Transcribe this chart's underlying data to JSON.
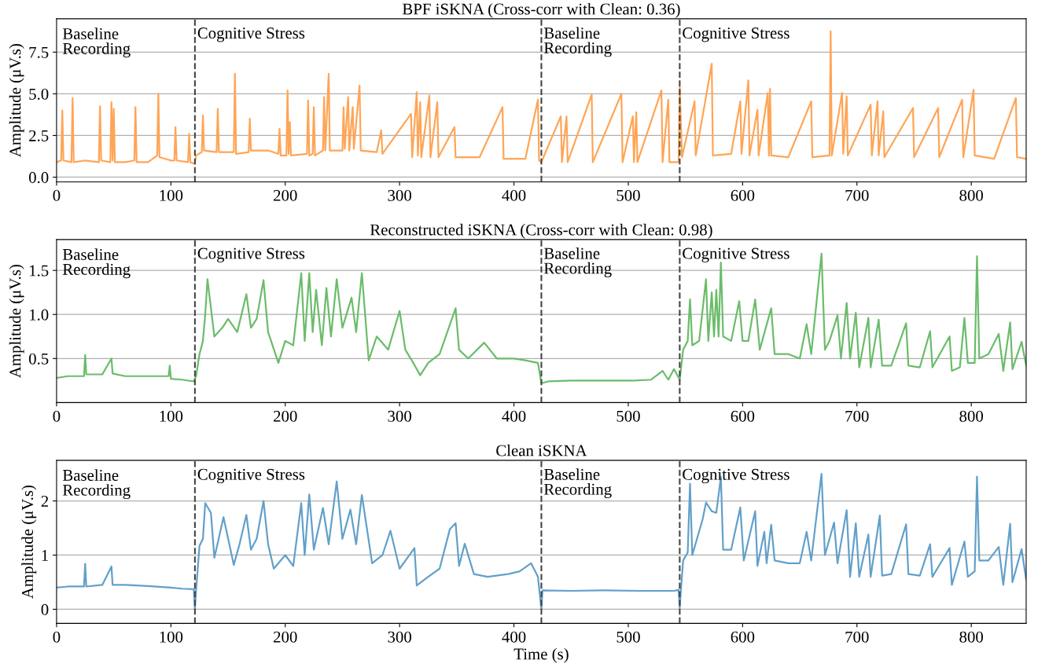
{
  "chart_data": [
    {
      "type": "line",
      "title": "BPF iSKNA (Cross-corr with Clean: 0.36)",
      "ylabel": "Amplitude (μV.s)",
      "xlim": [
        0,
        848
      ],
      "xticks": [
        0,
        100,
        200,
        300,
        400,
        500,
        600,
        700,
        800
      ],
      "ylim": [
        -0.28,
        9.5
      ],
      "yticks": [
        {
          "value": 0,
          "label": "0.0"
        },
        {
          "value": 2.5,
          "label": "2.5"
        },
        {
          "value": 5,
          "label": "5.0"
        },
        {
          "value": 7.5,
          "label": "7.5"
        }
      ],
      "grid": "y",
      "line_style": "solid",
      "marker": "none",
      "ref_lines": [
        {
          "axis": "x",
          "value": 121,
          "color": "#444444",
          "line_style": "dashed"
        },
        {
          "axis": "x",
          "value": 424,
          "color": "#444444",
          "line_style": "dashed"
        },
        {
          "axis": "x",
          "value": 545,
          "color": "#444444",
          "line_style": "dashed"
        }
      ],
      "annotations": [
        "Baseline\nRecording",
        {
          "text": "Cognitive Stress",
          "x": 123,
          "y": 9.0
        },
        {
          "text": "Baseline\nRecording",
          "x": 426,
          "y": 9.0
        },
        {
          "text": "Cognitive Stress",
          "x": 547,
          "y": 9.0
        }
      ],
      "series": [
        {
          "color": "#ffa556",
          "x": [
            0,
            4,
            5,
            6,
            13,
            14,
            15,
            25,
            37,
            38,
            39,
            47,
            48,
            49,
            50,
            51,
            60,
            68,
            69,
            70,
            80,
            88,
            89,
            90,
            100,
            103,
            104,
            105,
            115,
            116,
            117,
            121,
            122,
            127,
            128,
            129,
            140,
            141,
            142,
            155,
            156,
            157,
            168,
            169,
            170,
            185,
            194,
            195,
            196,
            201,
            202,
            203,
            204,
            205,
            219,
            220,
            221,
            224,
            225,
            226,
            233,
            234,
            235,
            238,
            239,
            250,
            251,
            252,
            255,
            256,
            259,
            260,
            265,
            266,
            280,
            284,
            285,
            310,
            311,
            315,
            316,
            318,
            319,
            326,
            327,
            333,
            334,
            348,
            349,
            370,
            390,
            391,
            410,
            421,
            422,
            424,
            441,
            442,
            446,
            447,
            468,
            469,
            494,
            495,
            504,
            505,
            507,
            508,
            529,
            530,
            535,
            536,
            544,
            545,
            547,
            558,
            559,
            573,
            574,
            590,
            598,
            599,
            605,
            606,
            613,
            614,
            622,
            623,
            624,
            625,
            640,
            660,
            661,
            676,
            677,
            678,
            687,
            688,
            691,
            692,
            712,
            713,
            718,
            719,
            723,
            724,
            749,
            750,
            771,
            772,
            792,
            793,
            802,
            803,
            820,
            839,
            840,
            848
          ],
          "values": [
            0.9,
            1.0,
            4.0,
            1.0,
            0.9,
            4.75,
            0.9,
            1.0,
            0.9,
            4.25,
            1.0,
            0.9,
            4.5,
            1.0,
            4.1,
            0.9,
            0.9,
            1.0,
            4.2,
            0.9,
            0.9,
            1.3,
            5.0,
            1.2,
            1.0,
            1.0,
            3.0,
            1.0,
            0.9,
            2.6,
            0.9,
            0.8,
            1.3,
            1.5,
            3.7,
            1.6,
            1.5,
            4.1,
            1.5,
            1.5,
            6.2,
            1.4,
            1.5,
            3.5,
            1.6,
            1.6,
            1.4,
            2.9,
            1.3,
            1.3,
            5.2,
            1.4,
            3.3,
            1.3,
            1.4,
            4.6,
            1.3,
            1.4,
            4.2,
            1.3,
            1.6,
            4.8,
            1.6,
            6.2,
            1.6,
            1.6,
            4.2,
            1.7,
            4.8,
            1.6,
            4.2,
            1.7,
            5.5,
            1.6,
            1.5,
            2.8,
            1.4,
            3.8,
            1.2,
            5.1,
            1.3,
            4.5,
            1.2,
            4.9,
            1.2,
            4.5,
            1.2,
            3.0,
            1.2,
            1.2,
            4.2,
            1.1,
            1.1,
            4.65,
            1.0,
            0.9,
            3.65,
            0.9,
            3.65,
            0.9,
            4.95,
            0.9,
            5.0,
            0.9,
            3.65,
            0.9,
            3.9,
            0.9,
            5.2,
            0.9,
            4.65,
            0.9,
            0.9,
            5.4,
            1.2,
            4.55,
            1.3,
            6.8,
            1.3,
            1.4,
            4.55,
            1.4,
            5.8,
            1.3,
            4.05,
            1.3,
            5.05,
            1.3,
            5.3,
            1.3,
            1.2,
            4.55,
            1.2,
            1.3,
            8.75,
            1.3,
            5.05,
            1.4,
            4.85,
            1.3,
            4.35,
            1.3,
            4.55,
            1.3,
            3.95,
            1.2,
            4.15,
            1.2,
            4.15,
            1.2,
            4.65,
            1.2,
            5.25,
            1.3,
            1.1,
            4.75,
            1.2,
            1.1
          ]
        }
      ]
    },
    {
      "type": "line",
      "title": "Reconstructed iSKNA (Cross-corr with Clean: 0.98)",
      "ylabel": "Amplitude (μV.s)",
      "xlim": [
        0,
        848
      ],
      "xticks": [
        0,
        100,
        200,
        300,
        400,
        500,
        600,
        700,
        800
      ],
      "ylim": [
        0.0,
        1.85
      ],
      "yticks": [
        {
          "value": 0.5,
          "label": "0.5"
        },
        {
          "value": 1.0,
          "label": "1.0"
        },
        {
          "value": 1.5,
          "label": "1.5"
        }
      ],
      "grid": "y",
      "line_style": "solid",
      "marker": "none",
      "ref_lines": [
        {
          "axis": "x",
          "value": 121,
          "color": "#444444",
          "line_style": "dashed"
        },
        {
          "axis": "x",
          "value": 424,
          "color": "#444444",
          "line_style": "dashed"
        },
        {
          "axis": "x",
          "value": 545,
          "color": "#444444",
          "line_style": "dashed"
        }
      ],
      "annotations": [
        "Baseline\nRecording",
        {
          "text": "Cognitive Stress",
          "x": 123,
          "y": 1.76
        },
        {
          "text": "Baseline\nRecording",
          "x": 426,
          "y": 1.76
        },
        {
          "text": "Cognitive Stress",
          "x": 547,
          "y": 1.76
        }
      ],
      "series": [
        {
          "color": "#6bbc6b",
          "x": [
            0,
            10,
            24,
            25,
            26,
            40,
            48,
            49,
            60,
            80,
            98,
            99,
            100,
            110,
            120,
            122,
            125,
            128,
            130,
            132,
            138,
            145,
            150,
            158,
            166,
            170,
            175,
            181,
            185,
            194,
            200,
            207,
            214,
            217,
            221,
            224,
            227,
            232,
            236,
            240,
            245,
            250,
            258,
            262,
            267,
            273,
            280,
            290,
            300,
            305,
            312,
            318,
            325,
            335,
            349,
            352,
            360,
            374,
            385,
            400,
            410,
            421,
            424,
            430,
            450,
            470,
            490,
            505,
            520,
            530,
            535,
            540,
            545,
            548,
            552,
            554,
            556,
            562,
            568,
            570,
            573,
            575,
            577,
            579,
            581,
            583,
            590,
            597,
            600,
            605,
            611,
            615,
            625,
            628,
            640,
            650,
            656,
            660,
            669,
            672,
            676,
            683,
            686,
            691,
            694,
            699,
            702,
            710,
            712,
            719,
            722,
            730,
            743,
            745,
            755,
            764,
            766,
            781,
            783,
            790,
            794,
            797,
            803,
            805,
            807,
            815,
            824,
            828,
            834,
            836,
            844,
            848
          ],
          "values": [
            0.28,
            0.3,
            0.3,
            0.54,
            0.32,
            0.32,
            0.5,
            0.33,
            0.3,
            0.3,
            0.3,
            0.42,
            0.27,
            0.26,
            0.24,
            0.3,
            0.55,
            0.7,
            1.0,
            1.4,
            0.75,
            0.85,
            0.95,
            0.8,
            1.23,
            0.85,
            0.95,
            1.39,
            0.8,
            0.45,
            0.7,
            0.65,
            1.47,
            0.7,
            1.47,
            0.8,
            1.28,
            0.65,
            1.3,
            0.75,
            1.4,
            0.85,
            1.19,
            0.8,
            1.47,
            0.48,
            0.75,
            0.6,
            1.04,
            0.6,
            0.45,
            0.31,
            0.45,
            0.55,
            1.07,
            0.6,
            0.5,
            0.68,
            0.5,
            0.5,
            0.48,
            0.45,
            0.22,
            0.24,
            0.25,
            0.25,
            0.25,
            0.25,
            0.26,
            0.36,
            0.26,
            0.38,
            0.26,
            0.6,
            0.7,
            1.17,
            0.65,
            0.7,
            1.4,
            0.7,
            1.25,
            0.75,
            1.28,
            0.75,
            1.59,
            0.75,
            0.7,
            1.15,
            0.7,
            0.7,
            1.17,
            0.6,
            1.07,
            0.55,
            0.55,
            0.5,
            0.89,
            0.55,
            1.69,
            0.6,
            0.7,
            0.99,
            0.5,
            1.13,
            0.5,
            1.02,
            0.4,
            0.96,
            0.4,
            0.94,
            0.42,
            0.42,
            0.9,
            0.42,
            0.4,
            0.81,
            0.4,
            0.75,
            0.36,
            0.4,
            0.96,
            0.45,
            0.45,
            1.66,
            0.5,
            0.55,
            0.78,
            0.36,
            0.91,
            0.38,
            0.69,
            0.42
          ]
        }
      ]
    },
    {
      "type": "line",
      "title": "Clean iSKNA",
      "xlabel": "Time (s)",
      "ylabel": "Amplitude (μV.s)",
      "xlim": [
        0,
        848
      ],
      "xticks": [
        0,
        100,
        200,
        300,
        400,
        500,
        600,
        700,
        800
      ],
      "ylim": [
        -0.26,
        2.75
      ],
      "yticks": [
        0,
        1,
        2
      ],
      "grid": "y",
      "line_style": "solid",
      "marker": "none",
      "ref_lines": [
        {
          "axis": "x",
          "value": 121,
          "color": "#444444",
          "line_style": "dashed"
        },
        {
          "axis": "x",
          "value": 424,
          "color": "#444444",
          "line_style": "dashed"
        },
        {
          "axis": "x",
          "value": 545,
          "color": "#444444",
          "line_style": "dashed"
        }
      ],
      "annotations": [
        "Baseline\nRecording",
        {
          "text": "Cognitive Stress",
          "x": 123,
          "y": 2.6
        },
        {
          "text": "Baseline\nRecording",
          "x": 426,
          "y": 2.6
        },
        {
          "text": "Cognitive Stress",
          "x": 547,
          "y": 2.6
        }
      ],
      "series": [
        {
          "color": "#62a0ca",
          "x": [
            0,
            10,
            24,
            25,
            26,
            40,
            48,
            49,
            60,
            80,
            100,
            110,
            120,
            121,
            122,
            125,
            128,
            130,
            135,
            138,
            146,
            155,
            160,
            166,
            170,
            175,
            181,
            185,
            190,
            200,
            207,
            214,
            217,
            221,
            225,
            233,
            238,
            245,
            250,
            257,
            262,
            267,
            276,
            285,
            292,
            300,
            313,
            315,
            325,
            335,
            344,
            349,
            352,
            357,
            365,
            377,
            395,
            405,
            415,
            421,
            424,
            425,
            450,
            480,
            510,
            540,
            544,
            545,
            546,
            548,
            552,
            554,
            556,
            565,
            568,
            573,
            577,
            581,
            583,
            590,
            598,
            601,
            611,
            613,
            619,
            621,
            625,
            628,
            640,
            650,
            656,
            660,
            669,
            672,
            680,
            683,
            691,
            694,
            699,
            702,
            710,
            712,
            720,
            722,
            730,
            743,
            745,
            755,
            764,
            766,
            781,
            783,
            794,
            797,
            803,
            805,
            807,
            815,
            824,
            828,
            834,
            836,
            844,
            848
          ],
          "values": [
            0.4,
            0.42,
            0.42,
            0.84,
            0.42,
            0.45,
            0.79,
            0.45,
            0.45,
            0.43,
            0.4,
            0.38,
            0.37,
            0.0,
            0.35,
            1.17,
            1.3,
            1.96,
            1.78,
            0.95,
            1.7,
            0.82,
            1.2,
            1.74,
            1.1,
            1.3,
            2.0,
            1.2,
            0.75,
            1.0,
            0.8,
            1.96,
            1.0,
            2.12,
            1.1,
            1.87,
            1.2,
            2.36,
            1.3,
            1.84,
            1.2,
            2.11,
            0.85,
            1.0,
            1.45,
            0.75,
            1.13,
            0.44,
            0.6,
            0.75,
            1.48,
            1.59,
            0.8,
            1.21,
            0.65,
            0.6,
            0.65,
            0.7,
            0.85,
            0.6,
            0.0,
            0.35,
            0.34,
            0.35,
            0.34,
            0.34,
            0.36,
            0.03,
            0.34,
            0.9,
            1.05,
            2.32,
            1.0,
            1.66,
            1.97,
            1.81,
            1.78,
            2.44,
            1.1,
            1.1,
            1.88,
            0.9,
            1.81,
            0.8,
            1.43,
            0.85,
            1.56,
            0.9,
            0.85,
            0.85,
            1.43,
            0.9,
            2.5,
            1.0,
            1.6,
            0.85,
            1.83,
            0.6,
            1.59,
            0.6,
            1.38,
            0.6,
            1.73,
            0.62,
            0.65,
            1.57,
            0.65,
            0.62,
            1.2,
            0.6,
            1.13,
            0.45,
            1.25,
            0.6,
            0.7,
            2.45,
            0.9,
            0.9,
            1.15,
            0.45,
            1.58,
            0.5,
            1.11,
            0.55
          ]
        }
      ]
    }
  ]
}
